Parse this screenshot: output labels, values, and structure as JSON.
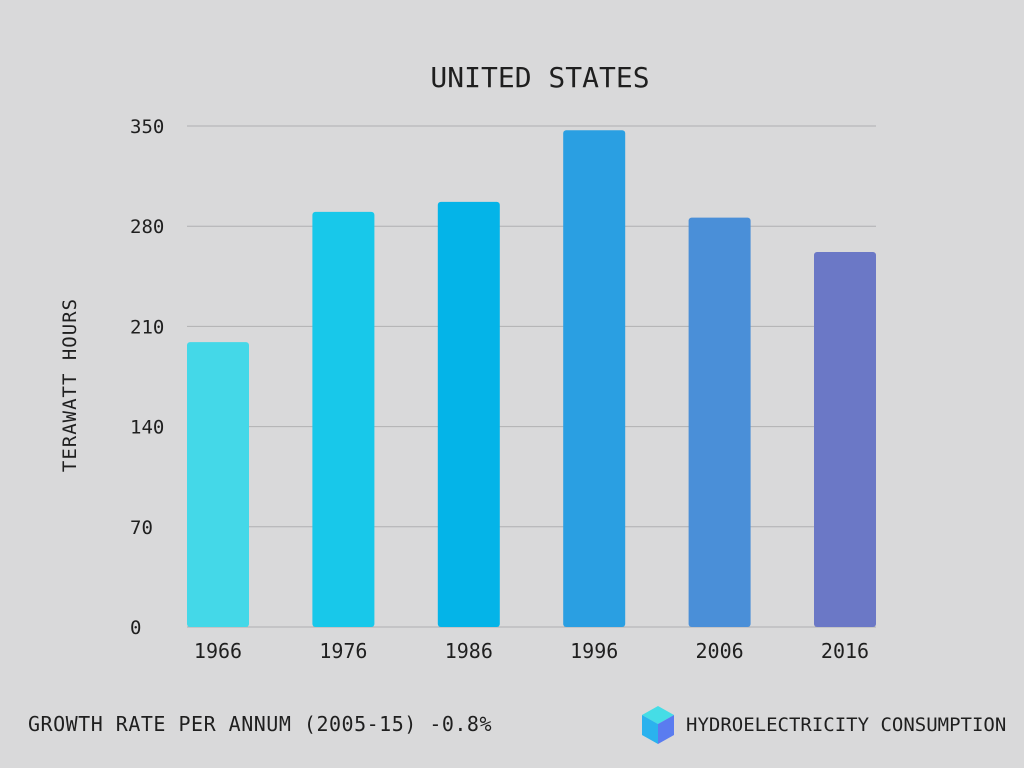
{
  "chart_data": {
    "type": "bar",
    "title": "UNITED STATES",
    "xlabel": "",
    "ylabel": "TERAWATT HOURS",
    "categories": [
      "1966",
      "1976",
      "1986",
      "1996",
      "2006",
      "2016"
    ],
    "values": [
      199,
      290,
      297,
      347,
      286,
      262
    ],
    "bar_colors": [
      "#44d8e8",
      "#18c8ea",
      "#04b4e8",
      "#2a9fe2",
      "#4a8fd8",
      "#6b78c6"
    ],
    "ylim": [
      0,
      350
    ],
    "yticks": [
      "0",
      "70",
      "140",
      "210",
      "280",
      "350"
    ],
    "grid": true,
    "legend": "none"
  },
  "footer": {
    "growth_text": "GROWTH RATE PER ANNUM (2005-15) -0.8%",
    "brand_label": "HYDROELECTRICITY CONSUMPTION"
  },
  "colors": {
    "background": "#d9d9da",
    "gridline": "#b0b0b2",
    "text": "#1f1f1f",
    "cube_top": "#45dde6",
    "cube_left": "#2ab2ee",
    "cube_right": "#5a7cf0"
  },
  "icons": {
    "brand": "cube-icon"
  }
}
